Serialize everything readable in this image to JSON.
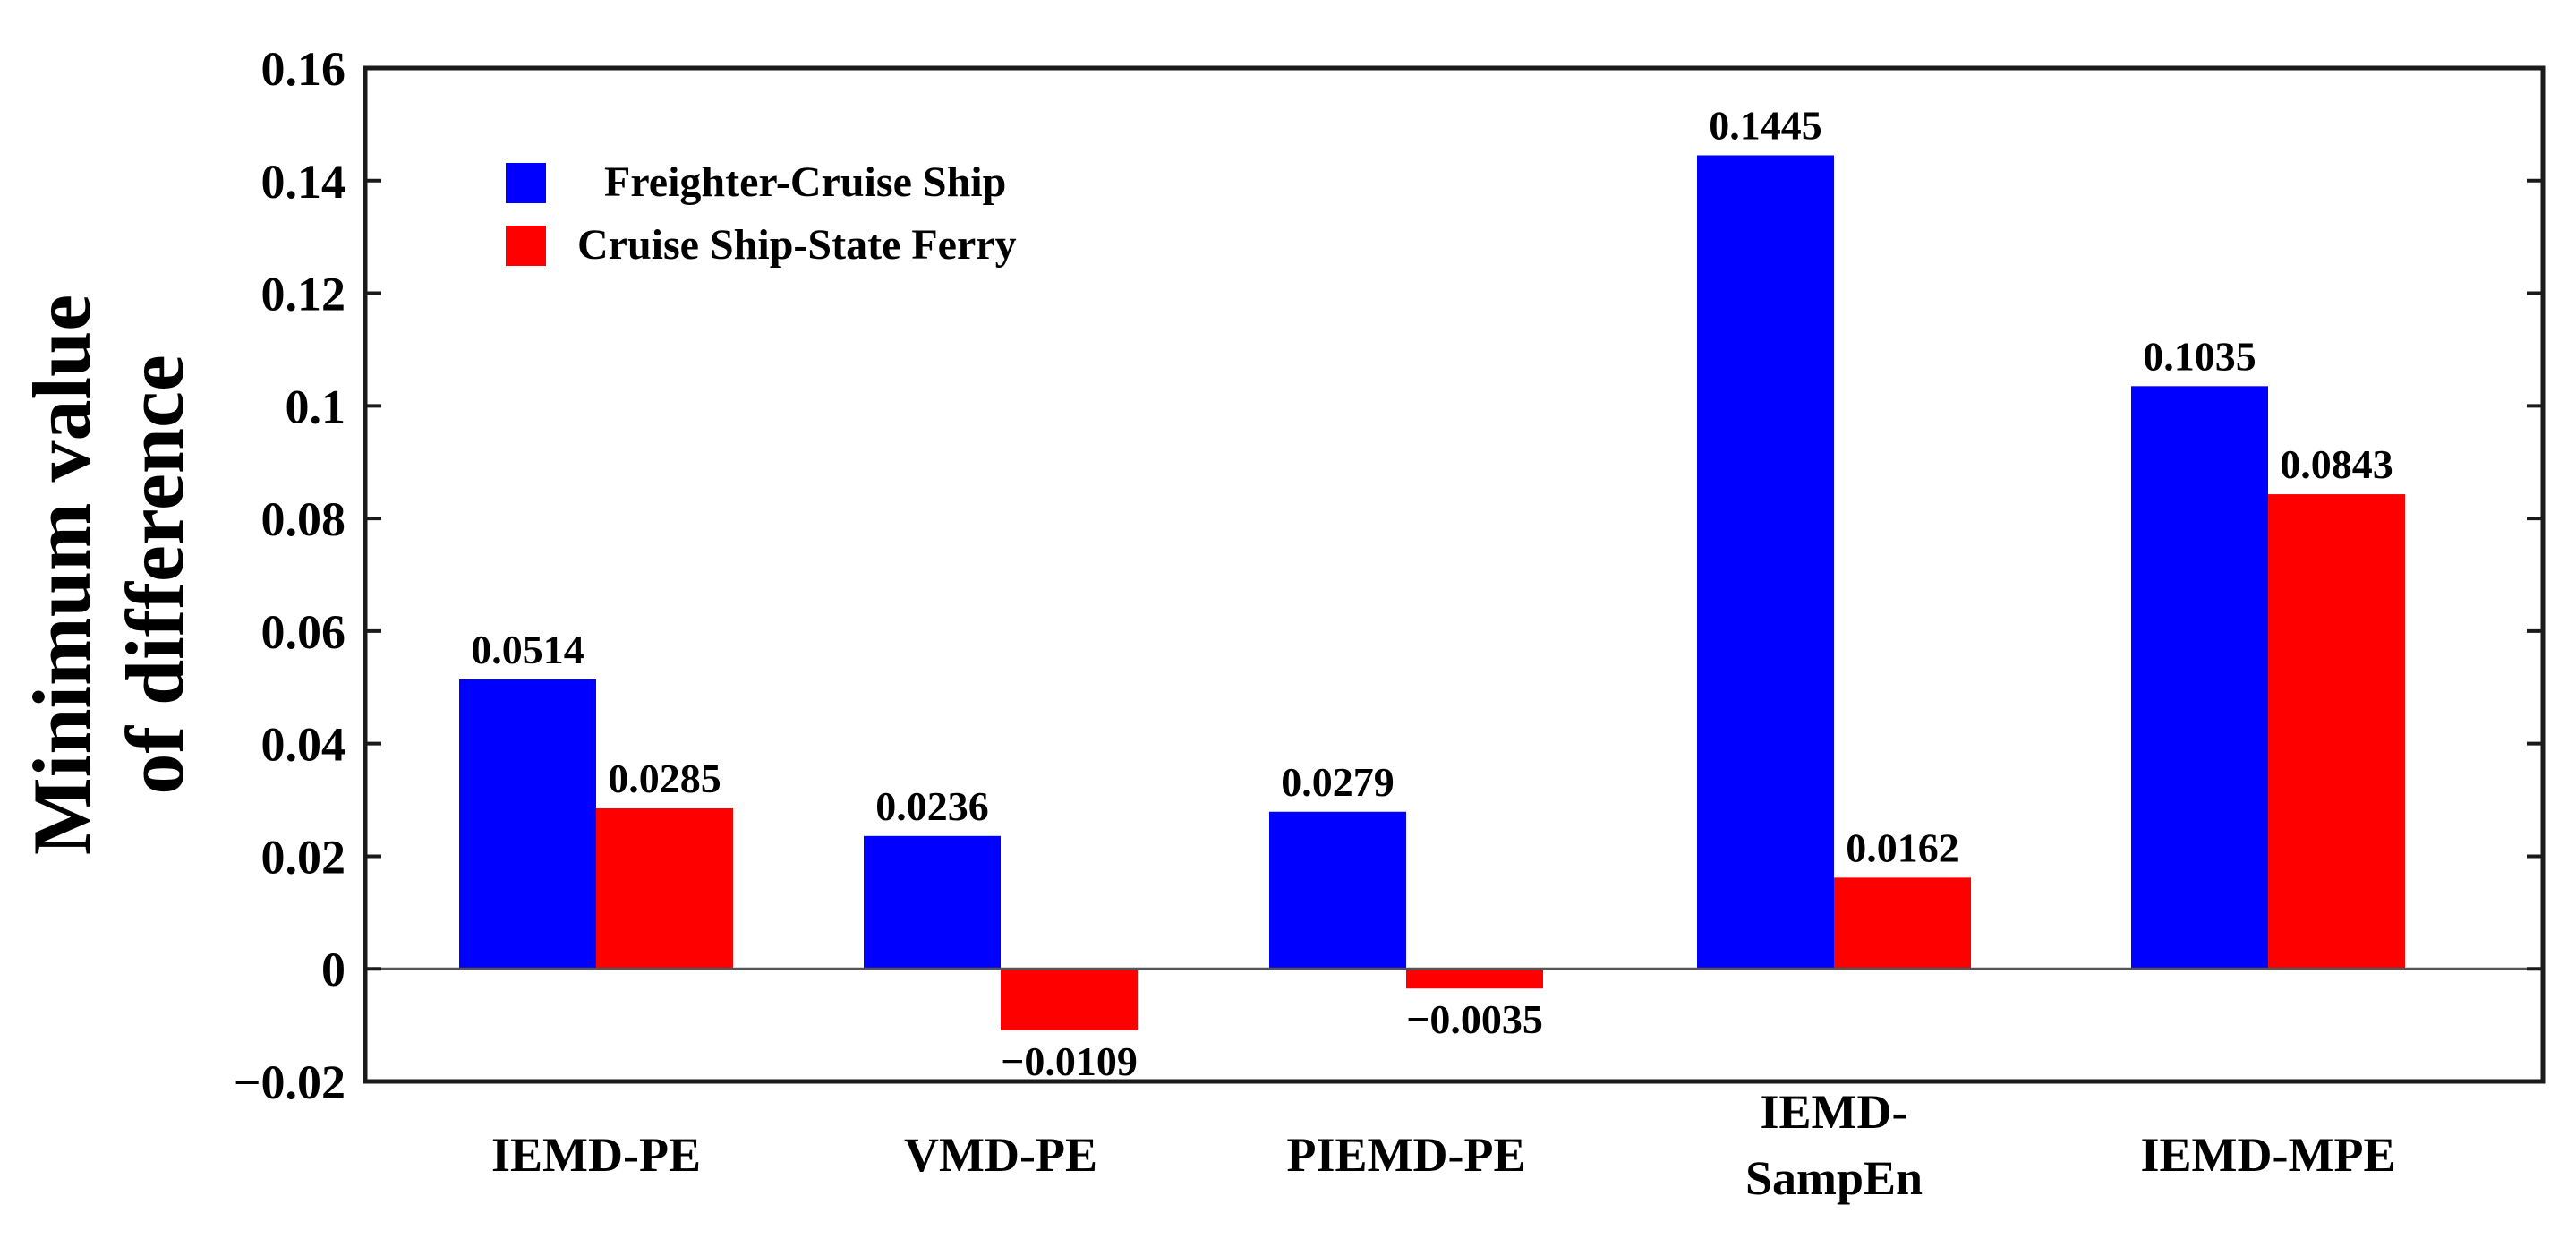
{
  "chart_data": {
    "type": "bar",
    "title": "",
    "ylabel": [
      "Minimum value",
      "of difference"
    ],
    "xlabel": "",
    "ylim": [
      -0.02,
      0.16
    ],
    "yticks": [
      -0.02,
      0,
      0.02,
      0.04,
      0.06,
      0.08,
      0.1,
      0.12,
      0.14,
      0.16
    ],
    "ytick_labels": [
      "−0.02",
      "0",
      "0.02",
      "0.04",
      "0.06",
      "0.08",
      "0.1",
      "0.12",
      "0.14",
      "0.16"
    ],
    "categories": [
      [
        "IEMD-PE"
      ],
      [
        "VMD-PE"
      ],
      [
        "PIEMD-PE"
      ],
      [
        "IEMD-",
        "SampEn"
      ],
      [
        "IEMD-MPE"
      ]
    ],
    "series": [
      {
        "name": "Freighter-Cruise Ship",
        "color": "#0000ff",
        "values": [
          0.0514,
          0.0236,
          0.0279,
          0.1445,
          0.1035
        ],
        "labels": [
          "0.0514",
          "0.0236",
          "0.0279",
          "0.1445",
          "0.1035"
        ]
      },
      {
        "name": "Cruise Ship-State Ferry",
        "color": "#ff0000",
        "values": [
          0.0285,
          -0.0109,
          -0.0035,
          0.0162,
          0.0843
        ],
        "labels": [
          "0.0285",
          "−0.0109",
          "−0.0035",
          "0.0162",
          "0.0843"
        ]
      }
    ],
    "legend_position": "top-left",
    "grid": false
  }
}
